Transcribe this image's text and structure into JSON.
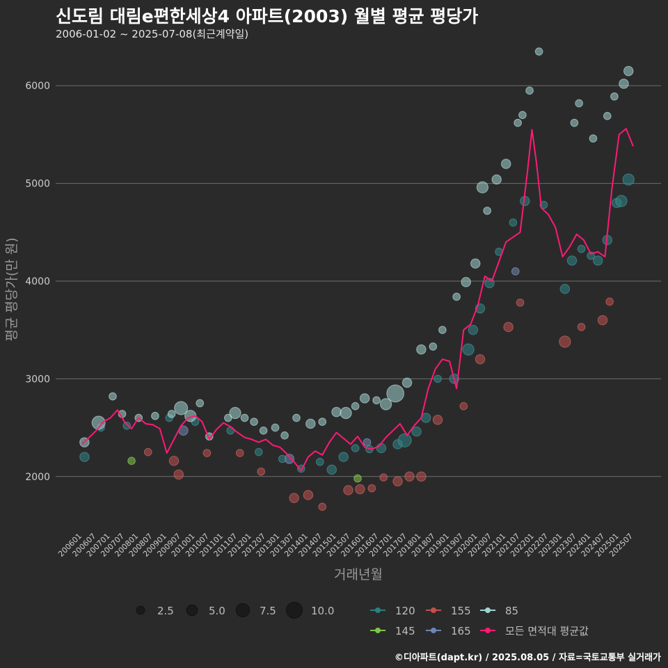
{
  "header": {
    "title": "신도림 대림e편한세상4 아파트(2003) 월별 평균 평당가",
    "subtitle": "2006-01-02 ~ 2025-07-08(최근계약일)",
    "caption": "©디아파트(dapt.kr) / 2025.08.05 / 자료=국토교통부 실거래가"
  },
  "chart_data": {
    "type": "scatter",
    "xlabel": "거래년월",
    "ylabel": "평균 평당가(만 원)",
    "x_range": [
      "2006-01",
      "2025-07"
    ],
    "ylim": [
      1450,
      6450
    ],
    "yticks": [
      2000,
      3000,
      4000,
      5000,
      6000
    ],
    "xticks": [
      "200601",
      "200607",
      "200701",
      "200707",
      "200801",
      "200807",
      "200901",
      "200907",
      "201001",
      "201007",
      "201101",
      "201107",
      "201201",
      "201207",
      "201301",
      "201307",
      "201401",
      "201407",
      "201501",
      "201507",
      "201601",
      "201607",
      "201701",
      "201707",
      "201801",
      "201807",
      "201901",
      "201907",
      "202001",
      "202007",
      "202101",
      "202107",
      "202201",
      "202207",
      "202301",
      "202307",
      "202401",
      "202407",
      "202501",
      "202507"
    ],
    "size_legend": {
      "values": [
        2.5,
        5.0,
        7.5,
        10.0
      ],
      "labels": [
        "2.5",
        "5.0",
        "7.5",
        "10.0"
      ]
    },
    "color_legend": [
      {
        "name": "120",
        "color": "#2e7f80"
      },
      {
        "name": "155",
        "color": "#c0504d"
      },
      {
        "name": "85",
        "color": "#9fd4d0"
      },
      {
        "name": "145",
        "color": "#7ec845"
      },
      {
        "name": "165",
        "color": "#6f86b2"
      },
      {
        "name": "모든 면적대 평균값",
        "color": "#ff1a75"
      }
    ],
    "line": {
      "name": "모든 면적대 평균값",
      "points": [
        [
          "2006-01",
          2330
        ],
        [
          "2006-04",
          2400
        ],
        [
          "2006-07",
          2470
        ],
        [
          "2006-10",
          2560
        ],
        [
          "2007-01",
          2600
        ],
        [
          "2007-04",
          2680
        ],
        [
          "2007-07",
          2560
        ],
        [
          "2007-10",
          2490
        ],
        [
          "2008-01",
          2600
        ],
        [
          "2008-04",
          2540
        ],
        [
          "2008-07",
          2530
        ],
        [
          "2008-10",
          2490
        ],
        [
          "2009-01",
          2240
        ],
        [
          "2009-04",
          2380
        ],
        [
          "2009-07",
          2520
        ],
        [
          "2009-10",
          2600
        ],
        [
          "2010-01",
          2620
        ],
        [
          "2010-04",
          2560
        ],
        [
          "2010-07",
          2380
        ],
        [
          "2010-10",
          2480
        ],
        [
          "2011-01",
          2550
        ],
        [
          "2011-04",
          2510
        ],
        [
          "2011-07",
          2450
        ],
        [
          "2011-10",
          2400
        ],
        [
          "2012-01",
          2380
        ],
        [
          "2012-04",
          2350
        ],
        [
          "2012-07",
          2380
        ],
        [
          "2012-10",
          2320
        ],
        [
          "2013-01",
          2300
        ],
        [
          "2013-04",
          2230
        ],
        [
          "2013-07",
          2150
        ],
        [
          "2013-10",
          2060
        ],
        [
          "2014-01",
          2200
        ],
        [
          "2014-04",
          2260
        ],
        [
          "2014-07",
          2220
        ],
        [
          "2014-10",
          2350
        ],
        [
          "2015-01",
          2450
        ],
        [
          "2015-04",
          2390
        ],
        [
          "2015-07",
          2330
        ],
        [
          "2015-10",
          2410
        ],
        [
          "2016-01",
          2300
        ],
        [
          "2016-04",
          2280
        ],
        [
          "2016-07",
          2310
        ],
        [
          "2016-10",
          2400
        ],
        [
          "2017-01",
          2470
        ],
        [
          "2017-04",
          2540
        ],
        [
          "2017-07",
          2420
        ],
        [
          "2017-10",
          2520
        ],
        [
          "2018-01",
          2600
        ],
        [
          "2018-04",
          2900
        ],
        [
          "2018-07",
          3100
        ],
        [
          "2018-10",
          3200
        ],
        [
          "2019-01",
          3180
        ],
        [
          "2019-04",
          2900
        ],
        [
          "2019-07",
          3500
        ],
        [
          "2019-10",
          3560
        ],
        [
          "2020-01",
          3750
        ],
        [
          "2020-04",
          4050
        ],
        [
          "2020-07",
          4000
        ],
        [
          "2020-10",
          4200
        ],
        [
          "2021-01",
          4400
        ],
        [
          "2021-04",
          4450
        ],
        [
          "2021-07",
          4500
        ],
        [
          "2021-10",
          5100
        ],
        [
          "2021-12",
          5550
        ],
        [
          "2022-02",
          5200
        ],
        [
          "2022-04",
          4750
        ],
        [
          "2022-07",
          4680
        ],
        [
          "2022-10",
          4550
        ],
        [
          "2023-01",
          4250
        ],
        [
          "2023-04",
          4350
        ],
        [
          "2023-07",
          4480
        ],
        [
          "2023-10",
          4420
        ],
        [
          "2024-01",
          4280
        ],
        [
          "2024-04",
          4300
        ],
        [
          "2024-07",
          4250
        ],
        [
          "2024-10",
          4950
        ],
        [
          "2025-01",
          5500
        ],
        [
          "2025-04",
          5560
        ],
        [
          "2025-07",
          5380
        ]
      ]
    },
    "points_85": [
      [
        "2006-02",
        2350,
        3
      ],
      [
        "2006-08",
        2550,
        5
      ],
      [
        "2007-02",
        2820,
        2
      ],
      [
        "2007-06",
        2640,
        2
      ],
      [
        "2008-01",
        2600,
        2
      ],
      [
        "2008-08",
        2620,
        2
      ],
      [
        "2009-03",
        2640,
        2
      ],
      [
        "2009-07",
        2700,
        5
      ],
      [
        "2009-11",
        2620,
        4
      ],
      [
        "2010-03",
        2750,
        2
      ],
      [
        "2010-07",
        2410,
        2
      ],
      [
        "2011-03",
        2600,
        2
      ],
      [
        "2011-06",
        2650,
        4
      ],
      [
        "2011-10",
        2600,
        2
      ],
      [
        "2012-02",
        2560,
        2
      ],
      [
        "2012-06",
        2470,
        2
      ],
      [
        "2012-11",
        2500,
        2
      ],
      [
        "2013-03",
        2420,
        2
      ],
      [
        "2013-08",
        2600,
        2
      ],
      [
        "2014-02",
        2540,
        3
      ],
      [
        "2014-07",
        2560,
        2
      ],
      [
        "2015-01",
        2660,
        3
      ],
      [
        "2015-05",
        2650,
        4
      ],
      [
        "2015-09",
        2720,
        2
      ],
      [
        "2016-01",
        2800,
        3
      ],
      [
        "2016-06",
        2780,
        2
      ],
      [
        "2016-10",
        2740,
        4
      ],
      [
        "2017-02",
        2850,
        7
      ],
      [
        "2017-07",
        2960,
        3
      ],
      [
        "2018-01",
        3300,
        3
      ],
      [
        "2018-06",
        3330,
        2
      ],
      [
        "2018-10",
        3500,
        2
      ],
      [
        "2019-04",
        3840,
        2
      ],
      [
        "2019-08",
        3990,
        3
      ],
      [
        "2019-12",
        4180,
        3
      ],
      [
        "2020-03",
        4960,
        4
      ],
      [
        "2020-05",
        4720,
        2
      ],
      [
        "2020-09",
        5040,
        3
      ],
      [
        "2021-01",
        5200,
        3
      ],
      [
        "2021-06",
        5620,
        2
      ],
      [
        "2021-08",
        5700,
        2
      ],
      [
        "2021-11",
        5950,
        2
      ],
      [
        "2022-03",
        6350,
        2
      ],
      [
        "2023-06",
        5620,
        2
      ],
      [
        "2023-08",
        5820,
        2
      ],
      [
        "2024-02",
        5460,
        2
      ],
      [
        "2024-08",
        5690,
        2
      ],
      [
        "2024-11",
        5890,
        2
      ],
      [
        "2025-03",
        6020,
        3
      ],
      [
        "2025-05",
        6150,
        3
      ]
    ],
    "points_120": [
      [
        "2006-02",
        2200,
        3
      ],
      [
        "2006-09",
        2500,
        2
      ],
      [
        "2007-08",
        2520,
        2
      ],
      [
        "2009-02",
        2600,
        2
      ],
      [
        "2010-01",
        2560,
        2
      ],
      [
        "2011-04",
        2470,
        2
      ],
      [
        "2012-04",
        2250,
        2
      ],
      [
        "2013-02",
        2180,
        2
      ],
      [
        "2013-10",
        2080,
        2
      ],
      [
        "2014-06",
        2150,
        2
      ],
      [
        "2014-11",
        2070,
        3
      ],
      [
        "2015-04",
        2200,
        3
      ],
      [
        "2015-09",
        2290,
        2
      ],
      [
        "2016-03",
        2280,
        2
      ],
      [
        "2016-08",
        2290,
        3
      ],
      [
        "2017-03",
        2330,
        3
      ],
      [
        "2017-06",
        2370,
        5
      ],
      [
        "2017-11",
        2460,
        3
      ],
      [
        "2018-03",
        2600,
        3
      ],
      [
        "2018-08",
        3000,
        2
      ],
      [
        "2019-03",
        3000,
        3
      ],
      [
        "2019-09",
        3300,
        4
      ],
      [
        "2019-11",
        3500,
        3
      ],
      [
        "2020-02",
        3720,
        3
      ],
      [
        "2020-06",
        3980,
        3
      ],
      [
        "2020-10",
        4300,
        2
      ],
      [
        "2021-04",
        4600,
        2
      ],
      [
        "2021-09",
        4820,
        3
      ],
      [
        "2022-05",
        4780,
        2
      ],
      [
        "2023-02",
        3920,
        3
      ],
      [
        "2023-05",
        4210,
        3
      ],
      [
        "2023-09",
        4330,
        2
      ],
      [
        "2024-01",
        4260,
        2
      ],
      [
        "2024-04",
        4210,
        3
      ],
      [
        "2024-08",
        4420,
        3
      ],
      [
        "2024-12",
        4800,
        3
      ],
      [
        "2025-02",
        4820,
        4
      ],
      [
        "2025-05",
        5040,
        4
      ]
    ],
    "points_155": [
      [
        "2008-05",
        2250,
        2
      ],
      [
        "2009-04",
        2160,
        3
      ],
      [
        "2009-06",
        2020,
        3
      ],
      [
        "2010-06",
        2240,
        2
      ],
      [
        "2011-08",
        2240,
        2
      ],
      [
        "2012-05",
        2050,
        2
      ],
      [
        "2013-07",
        1780,
        3
      ],
      [
        "2014-01",
        1810,
        3
      ],
      [
        "2014-07",
        1690,
        2
      ],
      [
        "2015-06",
        1860,
        3
      ],
      [
        "2015-11",
        1870,
        3
      ],
      [
        "2016-04",
        1880,
        2
      ],
      [
        "2016-09",
        1990,
        2
      ],
      [
        "2017-03",
        1950,
        3
      ],
      [
        "2017-08",
        2000,
        3
      ],
      [
        "2018-01",
        2000,
        3
      ],
      [
        "2018-08",
        2580,
        3
      ],
      [
        "2019-07",
        2720,
        2
      ],
      [
        "2020-02",
        3200,
        3
      ],
      [
        "2021-02",
        3530,
        3
      ],
      [
        "2021-07",
        3780,
        2
      ],
      [
        "2023-02",
        3380,
        4
      ],
      [
        "2023-09",
        3530,
        2
      ],
      [
        "2024-06",
        3600,
        3
      ],
      [
        "2024-09",
        3790,
        2
      ]
    ],
    "points_145": [
      [
        "2007-10",
        2160,
        2
      ],
      [
        "2015-10",
        1980,
        2
      ]
    ],
    "points_165": [
      [
        "2009-08",
        2470,
        3
      ],
      [
        "2013-05",
        2180,
        3
      ],
      [
        "2016-02",
        2350,
        2
      ],
      [
        "2021-05",
        4100,
        2
      ]
    ]
  }
}
